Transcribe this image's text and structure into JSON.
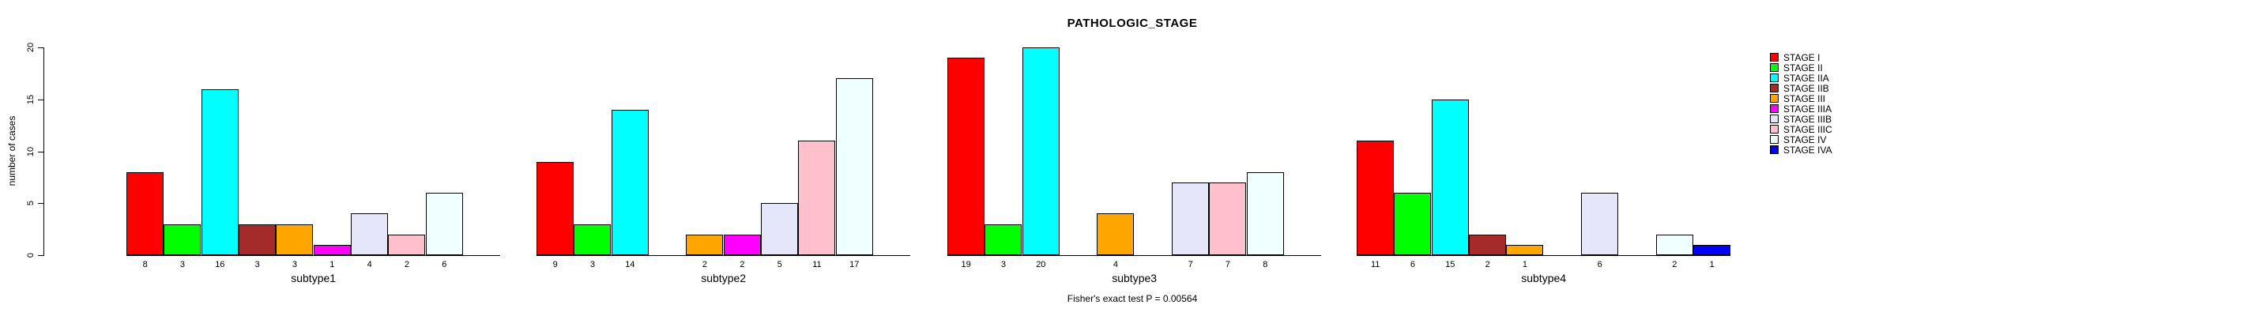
{
  "title": "PATHOLOGIC_STAGE",
  "caption": "Fisher's exact test P = 0.00564",
  "ylabel": "number of cases",
  "legend": {
    "position": "right",
    "entries": [
      {
        "label": "STAGE I",
        "color": "#FF0000"
      },
      {
        "label": "STAGE II",
        "color": "#00FF00"
      },
      {
        "label": "STAGE IIA",
        "color": "#00FFFF"
      },
      {
        "label": "STAGE IIB",
        "color": "#A52A2A"
      },
      {
        "label": "STAGE III",
        "color": "#FFA500"
      },
      {
        "label": "STAGE IIIA",
        "color": "#FF00FF"
      },
      {
        "label": "STAGE IIIB",
        "color": "#E6E6FA"
      },
      {
        "label": "STAGE IIIC",
        "color": "#FFC0CB"
      },
      {
        "label": "STAGE IV",
        "color": "#F0FFFF"
      },
      {
        "label": "STAGE IVA",
        "color": "#0000FF"
      }
    ]
  },
  "chart_data": {
    "type": "bar",
    "title": "PATHOLOGIC_STAGE",
    "xlabel": "",
    "ylabel": "number of cases",
    "ylim": [
      0,
      20
    ],
    "yticks": [
      0,
      5,
      10,
      15,
      20
    ],
    "grid": false,
    "legend_position": "right",
    "annotation": "Fisher's exact test P = 0.00564",
    "categories": [
      "STAGE I",
      "STAGE II",
      "STAGE IIA",
      "STAGE IIB",
      "STAGE III",
      "STAGE IIIA",
      "STAGE IIIB",
      "STAGE IIIC",
      "STAGE IV",
      "STAGE IVA"
    ],
    "colors": [
      "#FF0000",
      "#00FF00",
      "#00FFFF",
      "#A52A2A",
      "#FFA500",
      "#FF00FF",
      "#E6E6FA",
      "#FFC0CB",
      "#F0FFFF",
      "#0000FF"
    ],
    "series": [
      {
        "name": "subtype1",
        "values": [
          8,
          3,
          16,
          3,
          3,
          1,
          4,
          2,
          6,
          0
        ]
      },
      {
        "name": "subtype2",
        "values": [
          9,
          3,
          14,
          0,
          2,
          2,
          5,
          11,
          17,
          0
        ]
      },
      {
        "name": "subtype3",
        "values": [
          19,
          3,
          20,
          0,
          4,
          0,
          7,
          7,
          8,
          0
        ]
      },
      {
        "name": "subtype4",
        "values": [
          11,
          6,
          15,
          2,
          1,
          0,
          6,
          0,
          2,
          1
        ]
      }
    ]
  }
}
